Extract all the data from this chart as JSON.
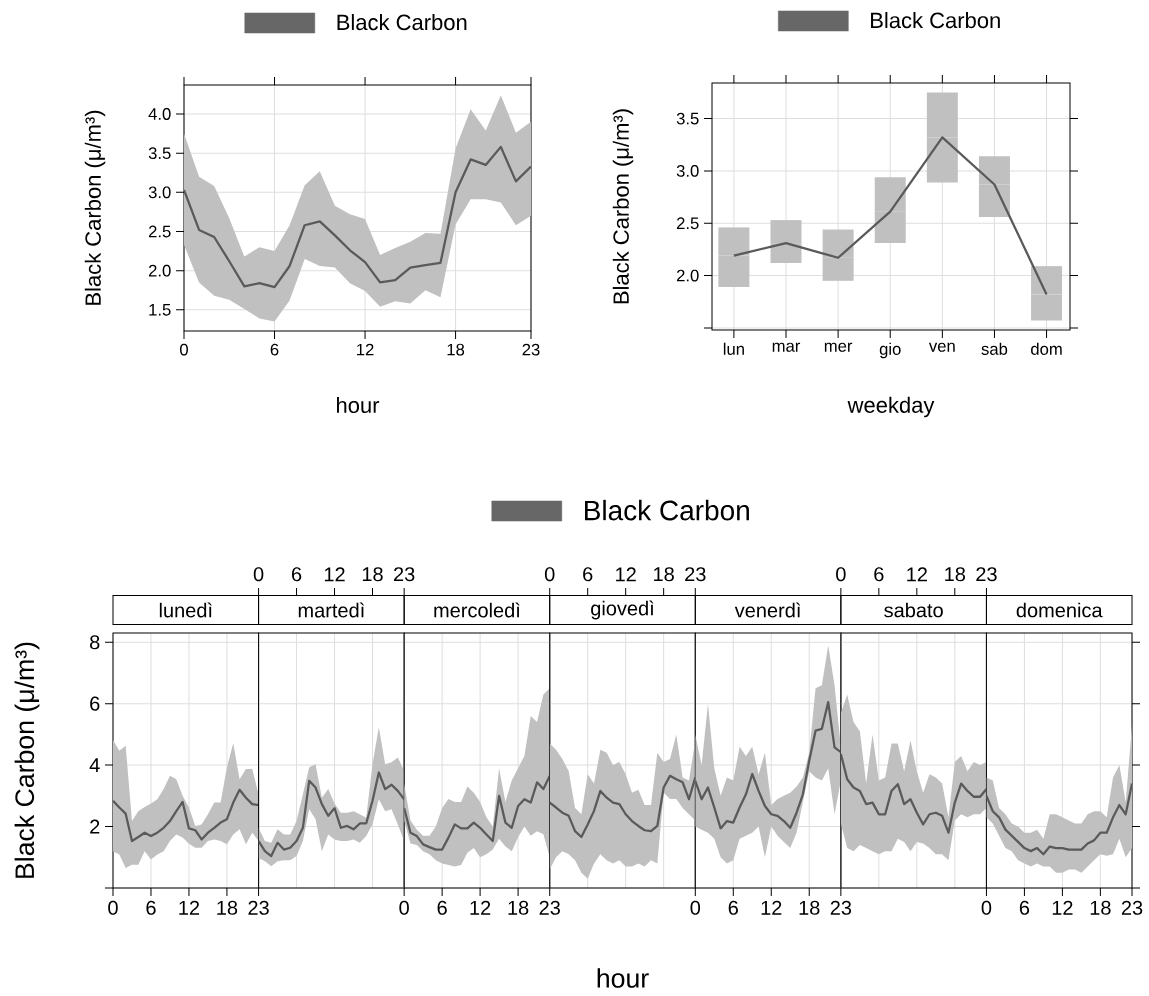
{
  "chart_data": [
    {
      "type": "line",
      "legend": "top",
      "grid": true,
      "xlabel": "hour",
      "ylabel": "Black Carbon (μ/m³)",
      "x": [
        0,
        1,
        2,
        3,
        4,
        5,
        6,
        7,
        8,
        9,
        10,
        11,
        12,
        13,
        14,
        15,
        16,
        17,
        18,
        19,
        20,
        21,
        22,
        23
      ],
      "xlim": [
        0,
        23
      ],
      "xticks": [
        0,
        6,
        12,
        18,
        23
      ],
      "ylim": [
        1.23,
        4.37
      ],
      "yticks": [
        1.5,
        {
          "value": 2,
          "label": "2.0"
        },
        2.5,
        {
          "value": 3,
          "label": "3.0"
        },
        3.5,
        {
          "value": 4,
          "label": "4.0"
        }
      ],
      "series": [
        {
          "name": "Black Carbon",
          "color": "#5a5a5a",
          "values": [
            3.03,
            2.52,
            2.43,
            2.12,
            1.8,
            1.84,
            1.79,
            2.06,
            2.58,
            2.63,
            2.45,
            2.26,
            2.11,
            1.85,
            1.88,
            2.04,
            2.07,
            2.1,
            3.0,
            3.42,
            3.35,
            3.58,
            3.14,
            3.33
          ],
          "upper": [
            3.75,
            3.2,
            3.08,
            2.67,
            2.18,
            2.3,
            2.25,
            2.58,
            3.09,
            3.27,
            2.83,
            2.72,
            2.66,
            2.2,
            2.29,
            2.37,
            2.48,
            2.47,
            3.56,
            4.06,
            3.79,
            4.24,
            3.76,
            3.9
          ],
          "lower": [
            2.33,
            1.85,
            1.68,
            1.63,
            1.51,
            1.39,
            1.35,
            1.62,
            2.15,
            2.06,
            2.04,
            1.84,
            1.74,
            1.54,
            1.61,
            1.58,
            1.75,
            1.66,
            2.59,
            2.91,
            2.91,
            2.87,
            2.58,
            2.7
          ]
        }
      ]
    },
    {
      "type": "line",
      "legend": "top",
      "grid": true,
      "xlabel": "weekday",
      "ylabel": "Black Carbon (μ/m³)",
      "categories": [
        "lun",
        "mar",
        "mer",
        "gio",
        "ven",
        "sab",
        "dom"
      ],
      "ylim": [
        1.48,
        3.84
      ],
      "yticks": [
        {
          "value": 1.5,
          "label": null
        },
        {
          "value": 2,
          "label": "2.0"
        },
        2.5,
        {
          "value": 3,
          "label": "3.0"
        },
        3.5
      ],
      "series": [
        {
          "name": "Black Carbon",
          "color": "#5a5a5a",
          "values": [
            2.19,
            2.31,
            2.17,
            2.61,
            3.32,
            2.87,
            1.82
          ],
          "errors": [
            [
              1.89,
              2.46
            ],
            [
              2.12,
              2.53
            ],
            [
              1.95,
              2.44
            ],
            [
              2.31,
              2.94
            ],
            [
              2.89,
              3.75
            ],
            [
              2.56,
              3.14
            ],
            [
              1.57,
              2.09
            ]
          ]
        }
      ]
    },
    {
      "type": "line",
      "title": "lunedì",
      "grid": true,
      "ylabel": "Black Carbon (μ/m³)",
      "x": [
        0,
        1,
        2,
        3,
        4,
        5,
        6,
        7,
        8,
        9,
        10,
        11,
        12,
        13,
        14,
        15,
        16,
        17,
        18,
        19,
        20,
        21,
        22,
        23
      ],
      "xlim": [
        0,
        23
      ],
      "xticks": [
        0,
        6,
        12,
        18,
        23
      ],
      "ylim": [
        0,
        8.3
      ],
      "yticks": [
        {
          "value": 0,
          "label": null
        },
        2,
        4,
        6,
        8
      ],
      "series": [
        {
          "color": "#5a5a5a",
          "values": [
            2.84,
            2.62,
            2.42,
            1.53,
            1.66,
            1.8,
            1.69,
            1.8,
            1.96,
            2.18,
            2.5,
            2.8,
            1.94,
            1.88,
            1.58,
            1.8,
            1.96,
            2.13,
            2.24,
            2.78,
            3.2,
            2.94,
            2.73,
            2.7
          ],
          "upper": [
            4.82,
            4.47,
            4.63,
            2.18,
            2.5,
            2.64,
            2.75,
            2.89,
            3.22,
            3.65,
            3.54,
            3.0,
            2.62,
            2.02,
            2.07,
            2.4,
            2.78,
            2.78,
            3.93,
            4.71,
            3.54,
            3.87,
            3.87,
            3.05
          ],
          "lower": [
            1.2,
            1.09,
            0.65,
            0.76,
            0.76,
            1.2,
            0.93,
            1.09,
            1.2,
            1.53,
            1.74,
            1.64,
            1.44,
            1.31,
            1.31,
            1.53,
            1.58,
            1.53,
            1.42,
            1.74,
            1.91,
            1.42,
            1.8,
            1.53
          ]
        }
      ]
    },
    {
      "type": "line",
      "title": "martedì",
      "grid": true,
      "tick_labels": "x",
      "x": [
        0,
        1,
        2,
        3,
        4,
        5,
        6,
        7,
        8,
        9,
        10,
        11,
        12,
        13,
        14,
        15,
        16,
        17,
        18,
        19,
        20,
        21,
        22,
        23
      ],
      "xlim": [
        0,
        23
      ],
      "x2lim": [
        0,
        23
      ],
      "x2ticks": [
        0,
        6,
        12,
        18,
        23
      ],
      "ylim": [
        0,
        8.3
      ],
      "yticks": [
        {
          "value": 0,
          "label": null
        },
        2,
        4,
        6,
        8
      ],
      "series": [
        {
          "color": "#5a5a5a",
          "values": [
            1.53,
            1.2,
            1.04,
            1.47,
            1.25,
            1.31,
            1.53,
            1.96,
            3.49,
            3.27,
            2.73,
            2.35,
            2.6,
            1.96,
            2.02,
            1.91,
            2.1,
            2.1,
            2.84,
            3.76,
            3.22,
            3.36,
            3.16,
            2.89
          ],
          "upper": [
            1.96,
            1.53,
            1.47,
            1.91,
            1.74,
            1.74,
            2.18,
            3.05,
            3.93,
            4.03,
            2.94,
            3.22,
            2.75,
            2.45,
            2.45,
            2.5,
            2.4,
            2.29,
            4.03,
            5.23,
            4.03,
            4.09,
            4.25,
            3.82
          ],
          "lower": [
            0.98,
            0.87,
            0.71,
            0.87,
            0.9,
            0.9,
            1.04,
            1.53,
            2.56,
            2.24,
            1.2,
            1.74,
            1.58,
            1.53,
            1.53,
            1.58,
            1.47,
            1.69,
            2.07,
            2.89,
            2.5,
            2.56,
            2.07,
            1.53
          ]
        }
      ]
    },
    {
      "type": "line",
      "title": "mercoledì",
      "grid": true,
      "tick_labels": "x",
      "x": [
        0,
        1,
        2,
        3,
        4,
        5,
        6,
        7,
        8,
        9,
        10,
        11,
        12,
        13,
        14,
        15,
        16,
        17,
        18,
        19,
        20,
        21,
        22,
        23
      ],
      "xlim": [
        0,
        23
      ],
      "xticks": [
        0,
        6,
        12,
        18,
        23
      ],
      "ylim": [
        0,
        8.3
      ],
      "yticks": [
        {
          "value": 0,
          "label": null
        },
        2,
        4,
        6,
        8
      ],
      "series": [
        {
          "color": "#5a5a5a",
          "values": [
            2.6,
            1.8,
            1.69,
            1.42,
            1.33,
            1.25,
            1.25,
            1.64,
            2.07,
            1.94,
            1.94,
            2.13,
            1.96,
            1.74,
            1.53,
            3.0,
            2.13,
            1.96,
            2.67,
            2.89,
            2.78,
            3.44,
            3.22,
            3.65
          ],
          "upper": [
            3.4,
            2.2,
            1.9,
            1.7,
            1.7,
            2.0,
            2.6,
            2.9,
            2.8,
            2.8,
            3.3,
            3.1,
            2.8,
            2.3,
            2.0,
            3.9,
            2.8,
            3.5,
            3.9,
            4.3,
            5.6,
            5.4,
            6.3,
            6.5
          ],
          "lower": [
            2.2,
            1.45,
            1.4,
            1.2,
            1.1,
            0.9,
            0.8,
            0.75,
            0.7,
            0.75,
            1.15,
            1.3,
            1.0,
            1.1,
            1.25,
            1.6,
            1.35,
            1.2,
            1.65,
            2.0,
            1.7,
            1.85,
            1.75,
            1.0
          ]
        }
      ]
    },
    {
      "type": "line",
      "title": "giovedì",
      "grid": true,
      "legend": "top",
      "tick_labels": "x",
      "xlabel": "hour",
      "x": [
        0,
        1,
        2,
        3,
        4,
        5,
        6,
        7,
        8,
        9,
        10,
        11,
        12,
        13,
        14,
        15,
        16,
        17,
        18,
        19,
        20,
        21,
        22,
        23
      ],
      "xlim": [
        0,
        23
      ],
      "x2lim": [
        0,
        23
      ],
      "x2ticks": [
        0,
        6,
        12,
        18,
        23
      ],
      "ylim": [
        0,
        8.3
      ],
      "yticks": [
        {
          "value": 0,
          "label": null
        },
        2,
        4,
        6,
        8
      ],
      "series": [
        {
          "name": "Black Carbon",
          "color": "#5a5a5a",
          "values": [
            2.78,
            2.62,
            2.45,
            2.35,
            1.85,
            1.66,
            2.07,
            2.51,
            3.16,
            2.94,
            2.78,
            2.73,
            2.4,
            2.18,
            2.02,
            1.88,
            1.85,
            2.02,
            3.27,
            3.65,
            3.54,
            3.44,
            2.89,
            3.6
          ],
          "upper": [
            4.7,
            4.5,
            4.2,
            3.8,
            2.6,
            2.4,
            3.7,
            3.4,
            4.5,
            4.4,
            4.0,
            4.1,
            3.7,
            3.1,
            3.2,
            2.7,
            2.7,
            4.4,
            4.1,
            4.2,
            5.0,
            3.6,
            3.5,
            4.8
          ],
          "lower": [
            0.6,
            1.0,
            1.2,
            1.1,
            0.9,
            0.5,
            0.3,
            0.8,
            1.1,
            0.9,
            0.8,
            0.9,
            0.7,
            0.7,
            0.8,
            0.7,
            0.9,
            0.8,
            3.1,
            2.9,
            2.9,
            2.6,
            2.4,
            2.2
          ]
        }
      ]
    },
    {
      "type": "line",
      "title": "venerdì",
      "grid": true,
      "tick_labels": "x",
      "x": [
        0,
        1,
        2,
        3,
        4,
        5,
        6,
        7,
        8,
        9,
        10,
        11,
        12,
        13,
        14,
        15,
        16,
        17,
        18,
        19,
        20,
        21,
        22,
        23
      ],
      "xlim": [
        0,
        23
      ],
      "xticks": [
        0,
        6,
        12,
        18,
        23
      ],
      "ylim": [
        0,
        8.3
      ],
      "yticks": [
        {
          "value": 0,
          "label": null
        },
        2,
        4,
        6,
        8
      ],
      "series": [
        {
          "color": "#5a5a5a",
          "values": [
            3.49,
            2.89,
            3.27,
            2.62,
            1.94,
            2.18,
            2.13,
            2.62,
            3.05,
            3.71,
            3.16,
            2.67,
            2.4,
            2.35,
            2.18,
            1.96,
            2.45,
            3.05,
            4.14,
            5.12,
            5.18,
            6.05,
            4.58,
            4.42
          ],
          "upper": [
            5.0,
            4.0,
            6.0,
            3.9,
            3.0,
            3.6,
            3.5,
            4.6,
            4.3,
            4.6,
            3.7,
            4.4,
            2.7,
            2.9,
            3.0,
            3.1,
            3.3,
            3.6,
            4.4,
            6.5,
            6.6,
            7.9,
            6.6,
            4.6
          ],
          "lower": [
            2.0,
            1.9,
            1.8,
            1.6,
            1.0,
            0.8,
            0.9,
            1.6,
            1.7,
            1.8,
            2.0,
            1.0,
            2.0,
            1.7,
            1.5,
            1.3,
            1.8,
            2.8,
            3.8,
            3.6,
            3.5,
            3.9,
            2.4,
            3.5
          ]
        }
      ]
    },
    {
      "type": "line",
      "title": "sabato",
      "grid": true,
      "tick_labels": "x",
      "x": [
        0,
        1,
        2,
        3,
        4,
        5,
        6,
        7,
        8,
        9,
        10,
        11,
        12,
        13,
        14,
        15,
        16,
        17,
        18,
        19,
        20,
        21,
        22,
        23
      ],
      "xlim": [
        0,
        23
      ],
      "x2lim": [
        0,
        23
      ],
      "x2ticks": [
        0,
        6,
        12,
        18,
        23
      ],
      "ylim": [
        0,
        8.3
      ],
      "yticks": [
        {
          "value": 0,
          "label": null
        },
        2,
        4,
        6,
        8
      ],
      "series": [
        {
          "color": "#5a5a5a",
          "values": [
            4.36,
            3.54,
            3.27,
            3.16,
            2.73,
            2.78,
            2.4,
            2.4,
            3.16,
            3.38,
            2.73,
            2.89,
            2.45,
            2.07,
            2.4,
            2.45,
            2.35,
            1.8,
            2.78,
            3.4,
            3.16,
            2.97,
            2.97,
            3.22
          ],
          "upper": [
            5.7,
            6.3,
            5.4,
            5.1,
            3.4,
            5.0,
            3.5,
            3.6,
            4.7,
            4.7,
            3.8,
            4.8,
            3.8,
            3.1,
            3.7,
            3.6,
            3.4,
            2.3,
            4.1,
            4.3,
            3.8,
            4.1,
            4.0,
            4.1
          ],
          "lower": [
            2.1,
            1.3,
            1.2,
            1.4,
            1.3,
            1.2,
            1.1,
            1.2,
            1.2,
            1.6,
            1.5,
            1.2,
            1.5,
            1.45,
            1.3,
            1.1,
            1.1,
            0.9,
            2.2,
            2.4,
            2.3,
            2.4,
            2.4,
            2.6
          ]
        }
      ]
    },
    {
      "type": "line",
      "title": "domenica",
      "grid": true,
      "tick_labels": "x",
      "x": [
        0,
        1,
        2,
        3,
        4,
        5,
        6,
        7,
        8,
        9,
        10,
        11,
        12,
        13,
        14,
        15,
        16,
        17,
        18,
        19,
        20,
        21,
        22,
        23
      ],
      "xlim": [
        0,
        23
      ],
      "xticks": [
        0,
        6,
        12,
        18,
        23
      ],
      "ylim": [
        0,
        8.3
      ],
      "yticks": [
        {
          "value": 0,
          "label": null
        },
        2,
        4,
        6,
        8
      ],
      "series": [
        {
          "color": "#5a5a5a",
          "values": [
            3.0,
            2.5,
            2.3,
            1.9,
            1.7,
            1.5,
            1.3,
            1.2,
            1.3,
            1.1,
            1.35,
            1.3,
            1.3,
            1.25,
            1.25,
            1.25,
            1.45,
            1.55,
            1.8,
            1.8,
            2.3,
            2.7,
            2.4,
            3.4
          ],
          "upper": [
            3.6,
            3.5,
            2.6,
            2.4,
            2.1,
            2.0,
            1.8,
            1.8,
            1.9,
            1.6,
            2.4,
            2.4,
            2.3,
            2.2,
            2.1,
            2.1,
            2.4,
            2.5,
            2.5,
            2.3,
            3.6,
            4.0,
            2.8,
            5.3
          ],
          "lower": [
            2.3,
            2.1,
            1.7,
            1.3,
            1.2,
            0.9,
            0.8,
            0.7,
            0.8,
            0.7,
            0.7,
            0.5,
            0.5,
            0.6,
            0.6,
            0.5,
            0.7,
            0.9,
            1.1,
            1.05,
            1.1,
            1.6,
            1.0,
            1.3
          ]
        }
      ]
    }
  ]
}
